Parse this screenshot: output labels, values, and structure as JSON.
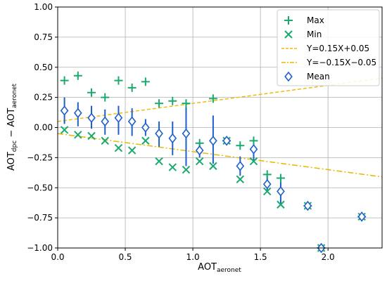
{
  "chart_data": {
    "type": "scatter",
    "xlabel": "AOT",
    "xlabel_sub": "aeronet",
    "ylabel_left": "AOT",
    "ylabel_sub1": "dpc",
    "ylabel_minus": " − AOT",
    "ylabel_sub2": "aeronet",
    "xlim": [
      0.0,
      2.4
    ],
    "ylim": [
      -1.0,
      1.0
    ],
    "xticks": [
      0.0,
      0.5,
      1.0,
      1.5,
      2.0
    ],
    "xtick_labels": [
      "0.0",
      "0.5",
      "1.0",
      "1.5",
      "2.0"
    ],
    "yticks": [
      -1.0,
      -0.75,
      -0.5,
      -0.25,
      0.0,
      0.25,
      0.5,
      0.75,
      1.0
    ],
    "ytick_labels": [
      "−1.00",
      "−0.75",
      "−0.50",
      "−0.25",
      "0.00",
      "0.25",
      "0.50",
      "0.75",
      "1.00"
    ],
    "grid": true,
    "legend_position": "top-right",
    "colors": {
      "max": "#1aaa6e",
      "min": "#1aaa6e",
      "upper_line": "#f2b90f",
      "lower_line": "#e6b800",
      "mean": "#1f5fcc"
    },
    "series": [
      {
        "name": "Max",
        "marker": "+",
        "points": [
          {
            "x": 0.05,
            "y": 0.39
          },
          {
            "x": 0.15,
            "y": 0.43
          },
          {
            "x": 0.25,
            "y": 0.29
          },
          {
            "x": 0.35,
            "y": 0.25
          },
          {
            "x": 0.45,
            "y": 0.39
          },
          {
            "x": 0.55,
            "y": 0.33
          },
          {
            "x": 0.65,
            "y": 0.38
          },
          {
            "x": 0.75,
            "y": 0.2
          },
          {
            "x": 0.85,
            "y": 0.22
          },
          {
            "x": 0.95,
            "y": 0.2
          },
          {
            "x": 1.05,
            "y": -0.13
          },
          {
            "x": 1.15,
            "y": 0.24
          },
          {
            "x": 1.35,
            "y": -0.15
          },
          {
            "x": 1.45,
            "y": -0.11
          },
          {
            "x": 1.55,
            "y": -0.39
          },
          {
            "x": 1.65,
            "y": -0.42
          }
        ]
      },
      {
        "name": "Min",
        "marker": "x",
        "points": [
          {
            "x": 0.05,
            "y": -0.02
          },
          {
            "x": 0.15,
            "y": -0.06
          },
          {
            "x": 0.25,
            "y": -0.07
          },
          {
            "x": 0.35,
            "y": -0.11
          },
          {
            "x": 0.45,
            "y": -0.17
          },
          {
            "x": 0.55,
            "y": -0.19
          },
          {
            "x": 0.65,
            "y": -0.11
          },
          {
            "x": 0.75,
            "y": -0.28
          },
          {
            "x": 0.85,
            "y": -0.33
          },
          {
            "x": 0.95,
            "y": -0.35
          },
          {
            "x": 1.05,
            "y": -0.28
          },
          {
            "x": 1.15,
            "y": -0.32
          },
          {
            "x": 1.35,
            "y": -0.43
          },
          {
            "x": 1.45,
            "y": -0.28
          },
          {
            "x": 1.55,
            "y": -0.53
          },
          {
            "x": 1.65,
            "y": -0.64
          }
        ]
      },
      {
        "name": "Y=0.15X+0.05",
        "line": "dashed",
        "points": [
          {
            "x": 0.0,
            "y": 0.05
          },
          {
            "x": 2.4,
            "y": 0.41
          }
        ]
      },
      {
        "name": "Y=−0.15X−0.05",
        "line": "dashdot",
        "points": [
          {
            "x": 0.0,
            "y": -0.05
          },
          {
            "x": 2.4,
            "y": -0.41
          }
        ]
      },
      {
        "name": "Mean",
        "marker": "diamond",
        "points": [
          {
            "x": 0.05,
            "y": 0.14,
            "err_lo": 0.03,
            "err_hi": 0.25
          },
          {
            "x": 0.15,
            "y": 0.12,
            "err_lo": 0.01,
            "err_hi": 0.21
          },
          {
            "x": 0.25,
            "y": 0.08,
            "err_lo": -0.01,
            "err_hi": 0.18
          },
          {
            "x": 0.35,
            "y": 0.05,
            "err_lo": -0.06,
            "err_hi": 0.15
          },
          {
            "x": 0.45,
            "y": 0.08,
            "err_lo": -0.06,
            "err_hi": 0.18
          },
          {
            "x": 0.55,
            "y": 0.05,
            "err_lo": -0.07,
            "err_hi": 0.16
          },
          {
            "x": 0.65,
            "y": 0.0,
            "err_lo": -0.07,
            "err_hi": 0.07
          },
          {
            "x": 0.75,
            "y": -0.05,
            "err_lo": -0.16,
            "err_hi": 0.05
          },
          {
            "x": 0.85,
            "y": -0.09,
            "err_lo": -0.23,
            "err_hi": 0.05
          },
          {
            "x": 0.95,
            "y": -0.05,
            "err_lo": -0.32,
            "err_hi": 0.2
          },
          {
            "x": 1.05,
            "y": -0.19,
            "err_lo": -0.25,
            "err_hi": -0.13
          },
          {
            "x": 1.15,
            "y": -0.11,
            "err_lo": -0.3,
            "err_hi": 0.1
          },
          {
            "x": 1.25,
            "y": -0.11,
            "err_lo": -0.11,
            "err_hi": -0.11
          },
          {
            "x": 1.35,
            "y": -0.32,
            "err_lo": -0.4,
            "err_hi": -0.24
          },
          {
            "x": 1.45,
            "y": -0.18,
            "err_lo": -0.28,
            "err_hi": -0.11
          },
          {
            "x": 1.55,
            "y": -0.47,
            "err_lo": -0.52,
            "err_hi": -0.4
          },
          {
            "x": 1.65,
            "y": -0.53,
            "err_lo": -0.64,
            "err_hi": -0.42
          },
          {
            "x": 1.85,
            "y": -0.65,
            "err_lo": -0.65,
            "err_hi": -0.65
          },
          {
            "x": 1.95,
            "y": -1.0,
            "err_lo": -1.0,
            "err_hi": -1.0
          },
          {
            "x": 2.25,
            "y": -0.74,
            "err_lo": -0.74,
            "err_hi": -0.74
          }
        ]
      }
    ],
    "extra_markers": [
      {
        "x": 1.25,
        "y": -0.11,
        "markers": [
          "+",
          "x"
        ]
      },
      {
        "x": 1.85,
        "y": -0.65,
        "markers": [
          "+",
          "x"
        ]
      },
      {
        "x": 1.95,
        "y": -1.0,
        "markers": [
          "+",
          "x"
        ]
      },
      {
        "x": 2.25,
        "y": -0.74,
        "markers": [
          "+",
          "x"
        ]
      }
    ]
  }
}
